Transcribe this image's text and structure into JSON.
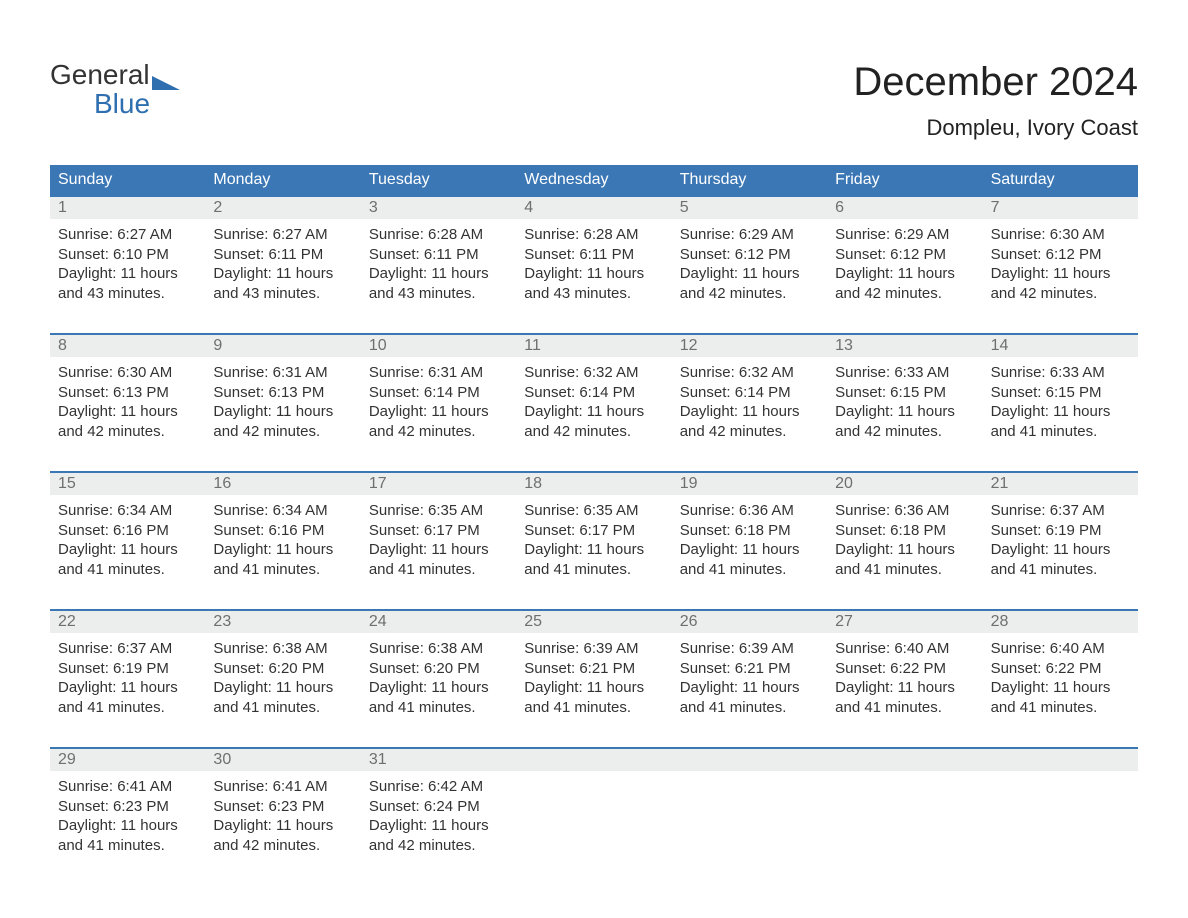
{
  "logo": {
    "word1": "General",
    "word2": "Blue"
  },
  "title": "December 2024",
  "location": "Dompleu, Ivory Coast",
  "colors": {
    "header_bg": "#3b77b5",
    "header_text": "#ffffff",
    "daynum_bg": "#eceded",
    "daynum_text": "#6f6f6f",
    "body_text": "#333333",
    "logo_blue": "#2f6fb0",
    "week_border": "#3b77b5"
  },
  "days_of_week": [
    "Sunday",
    "Monday",
    "Tuesday",
    "Wednesday",
    "Thursday",
    "Friday",
    "Saturday"
  ],
  "weeks": [
    [
      {
        "n": "1",
        "sunrise": "Sunrise: 6:27 AM",
        "sunset": "Sunset: 6:10 PM",
        "daylight": "Daylight: 11 hours and 43 minutes."
      },
      {
        "n": "2",
        "sunrise": "Sunrise: 6:27 AM",
        "sunset": "Sunset: 6:11 PM",
        "daylight": "Daylight: 11 hours and 43 minutes."
      },
      {
        "n": "3",
        "sunrise": "Sunrise: 6:28 AM",
        "sunset": "Sunset: 6:11 PM",
        "daylight": "Daylight: 11 hours and 43 minutes."
      },
      {
        "n": "4",
        "sunrise": "Sunrise: 6:28 AM",
        "sunset": "Sunset: 6:11 PM",
        "daylight": "Daylight: 11 hours and 43 minutes."
      },
      {
        "n": "5",
        "sunrise": "Sunrise: 6:29 AM",
        "sunset": "Sunset: 6:12 PM",
        "daylight": "Daylight: 11 hours and 42 minutes."
      },
      {
        "n": "6",
        "sunrise": "Sunrise: 6:29 AM",
        "sunset": "Sunset: 6:12 PM",
        "daylight": "Daylight: 11 hours and 42 minutes."
      },
      {
        "n": "7",
        "sunrise": "Sunrise: 6:30 AM",
        "sunset": "Sunset: 6:12 PM",
        "daylight": "Daylight: 11 hours and 42 minutes."
      }
    ],
    [
      {
        "n": "8",
        "sunrise": "Sunrise: 6:30 AM",
        "sunset": "Sunset: 6:13 PM",
        "daylight": "Daylight: 11 hours and 42 minutes."
      },
      {
        "n": "9",
        "sunrise": "Sunrise: 6:31 AM",
        "sunset": "Sunset: 6:13 PM",
        "daylight": "Daylight: 11 hours and 42 minutes."
      },
      {
        "n": "10",
        "sunrise": "Sunrise: 6:31 AM",
        "sunset": "Sunset: 6:14 PM",
        "daylight": "Daylight: 11 hours and 42 minutes."
      },
      {
        "n": "11",
        "sunrise": "Sunrise: 6:32 AM",
        "sunset": "Sunset: 6:14 PM",
        "daylight": "Daylight: 11 hours and 42 minutes."
      },
      {
        "n": "12",
        "sunrise": "Sunrise: 6:32 AM",
        "sunset": "Sunset: 6:14 PM",
        "daylight": "Daylight: 11 hours and 42 minutes."
      },
      {
        "n": "13",
        "sunrise": "Sunrise: 6:33 AM",
        "sunset": "Sunset: 6:15 PM",
        "daylight": "Daylight: 11 hours and 42 minutes."
      },
      {
        "n": "14",
        "sunrise": "Sunrise: 6:33 AM",
        "sunset": "Sunset: 6:15 PM",
        "daylight": "Daylight: 11 hours and 41 minutes."
      }
    ],
    [
      {
        "n": "15",
        "sunrise": "Sunrise: 6:34 AM",
        "sunset": "Sunset: 6:16 PM",
        "daylight": "Daylight: 11 hours and 41 minutes."
      },
      {
        "n": "16",
        "sunrise": "Sunrise: 6:34 AM",
        "sunset": "Sunset: 6:16 PM",
        "daylight": "Daylight: 11 hours and 41 minutes."
      },
      {
        "n": "17",
        "sunrise": "Sunrise: 6:35 AM",
        "sunset": "Sunset: 6:17 PM",
        "daylight": "Daylight: 11 hours and 41 minutes."
      },
      {
        "n": "18",
        "sunrise": "Sunrise: 6:35 AM",
        "sunset": "Sunset: 6:17 PM",
        "daylight": "Daylight: 11 hours and 41 minutes."
      },
      {
        "n": "19",
        "sunrise": "Sunrise: 6:36 AM",
        "sunset": "Sunset: 6:18 PM",
        "daylight": "Daylight: 11 hours and 41 minutes."
      },
      {
        "n": "20",
        "sunrise": "Sunrise: 6:36 AM",
        "sunset": "Sunset: 6:18 PM",
        "daylight": "Daylight: 11 hours and 41 minutes."
      },
      {
        "n": "21",
        "sunrise": "Sunrise: 6:37 AM",
        "sunset": "Sunset: 6:19 PM",
        "daylight": "Daylight: 11 hours and 41 minutes."
      }
    ],
    [
      {
        "n": "22",
        "sunrise": "Sunrise: 6:37 AM",
        "sunset": "Sunset: 6:19 PM",
        "daylight": "Daylight: 11 hours and 41 minutes."
      },
      {
        "n": "23",
        "sunrise": "Sunrise: 6:38 AM",
        "sunset": "Sunset: 6:20 PM",
        "daylight": "Daylight: 11 hours and 41 minutes."
      },
      {
        "n": "24",
        "sunrise": "Sunrise: 6:38 AM",
        "sunset": "Sunset: 6:20 PM",
        "daylight": "Daylight: 11 hours and 41 minutes."
      },
      {
        "n": "25",
        "sunrise": "Sunrise: 6:39 AM",
        "sunset": "Sunset: 6:21 PM",
        "daylight": "Daylight: 11 hours and 41 minutes."
      },
      {
        "n": "26",
        "sunrise": "Sunrise: 6:39 AM",
        "sunset": "Sunset: 6:21 PM",
        "daylight": "Daylight: 11 hours and 41 minutes."
      },
      {
        "n": "27",
        "sunrise": "Sunrise: 6:40 AM",
        "sunset": "Sunset: 6:22 PM",
        "daylight": "Daylight: 11 hours and 41 minutes."
      },
      {
        "n": "28",
        "sunrise": "Sunrise: 6:40 AM",
        "sunset": "Sunset: 6:22 PM",
        "daylight": "Daylight: 11 hours and 41 minutes."
      }
    ],
    [
      {
        "n": "29",
        "sunrise": "Sunrise: 6:41 AM",
        "sunset": "Sunset: 6:23 PM",
        "daylight": "Daylight: 11 hours and 41 minutes."
      },
      {
        "n": "30",
        "sunrise": "Sunrise: 6:41 AM",
        "sunset": "Sunset: 6:23 PM",
        "daylight": "Daylight: 11 hours and 42 minutes."
      },
      {
        "n": "31",
        "sunrise": "Sunrise: 6:42 AM",
        "sunset": "Sunset: 6:24 PM",
        "daylight": "Daylight: 11 hours and 42 minutes."
      },
      null,
      null,
      null,
      null
    ]
  ]
}
